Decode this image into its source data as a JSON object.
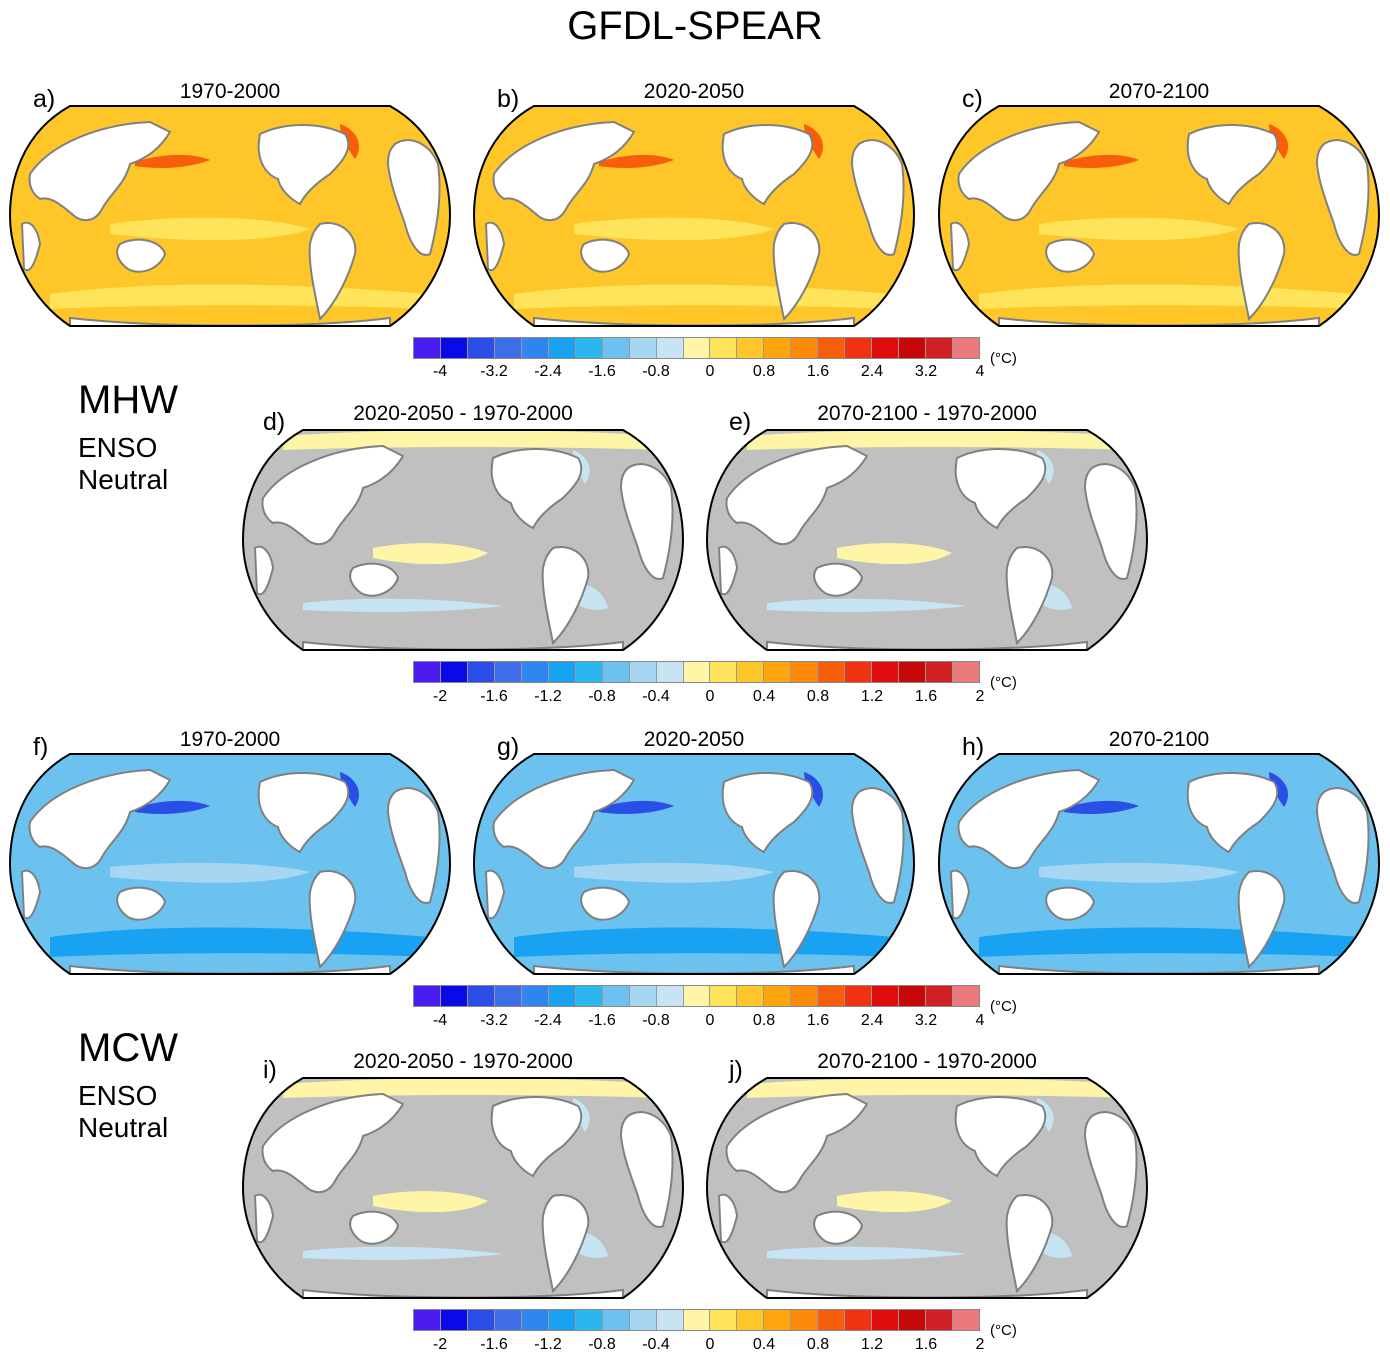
{
  "title": "GFDL-SPEAR",
  "sections": {
    "mhw": {
      "label": "MHW",
      "sub1": "ENSO",
      "sub2": "Neutral"
    },
    "mcw": {
      "label": "MCW",
      "sub1": "ENSO",
      "sub2": "Neutral"
    }
  },
  "panels": [
    {
      "letter": "a)",
      "title": "1970-2000",
      "kind": "warm"
    },
    {
      "letter": "b)",
      "title": "2020-2050",
      "kind": "warm"
    },
    {
      "letter": "c)",
      "title": "2070-2100",
      "kind": "warm"
    },
    {
      "letter": "d)",
      "title": "2020-2050 - 1970-2000",
      "kind": "diff"
    },
    {
      "letter": "e)",
      "title": "2070-2100 - 1970-2000",
      "kind": "diff"
    },
    {
      "letter": "f)",
      "title": "1970-2000",
      "kind": "cold"
    },
    {
      "letter": "g)",
      "title": "2020-2050",
      "kind": "cold"
    },
    {
      "letter": "h)",
      "title": "2070-2100",
      "kind": "cold"
    },
    {
      "letter": "i)",
      "title": "2020-2050 - 1970-2000",
      "kind": "diff"
    },
    {
      "letter": "j)",
      "title": "2070-2100 - 1970-2000",
      "kind": "diff"
    }
  ],
  "colorbars": [
    {
      "unit": "(°C)",
      "ticks": [
        "-4",
        "-3.2",
        "-2.4",
        "-1.6",
        "-0.8",
        "0",
        "0.8",
        "1.6",
        "2.4",
        "3.2",
        "4"
      ]
    },
    {
      "unit": "(°C)",
      "ticks": [
        "-2",
        "-1.6",
        "-1.2",
        "-0.8",
        "-0.4",
        "0",
        "0.4",
        "0.8",
        "1.2",
        "1.6",
        "2"
      ]
    },
    {
      "unit": "(°C)",
      "ticks": [
        "-4",
        "-3.2",
        "-2.4",
        "-1.6",
        "-0.8",
        "0",
        "0.8",
        "1.6",
        "2.4",
        "3.2",
        "4"
      ]
    },
    {
      "unit": "(°C)",
      "ticks": [
        "-2",
        "-1.6",
        "-1.2",
        "-0.8",
        "-0.4",
        "0",
        "0.4",
        "0.8",
        "1.2",
        "1.6",
        "2"
      ]
    }
  ],
  "palette": [
    "#4a1cf0",
    "#0a0ae8",
    "#2a4ee6",
    "#3d6ee8",
    "#2f86ee",
    "#1aa2f2",
    "#2cb6f0",
    "#6cc2ee",
    "#a6d6f2",
    "#c6e4f4",
    "#fff5a6",
    "#ffe35a",
    "#ffc62a",
    "#ffa60e",
    "#ff8a0a",
    "#f65e0a",
    "#f03210",
    "#e00e0e",
    "#c80808",
    "#d02226",
    "#ea7a7c"
  ],
  "colors": {
    "land": "#ffffff",
    "coast": "#808080",
    "warm_base": "#ffc62a",
    "warm_light": "#ffe35a",
    "warm_hot": "#f65e0a",
    "cold_base": "#6cc2ee",
    "cold_light": "#a6d6f2",
    "cold_deep": "#1aa2f2",
    "cold_dark": "#2a4ee6",
    "diff_base": "#c0c0c0",
    "diff_pos": "#fff5a6",
    "diff_neg": "#c6e4f4"
  }
}
